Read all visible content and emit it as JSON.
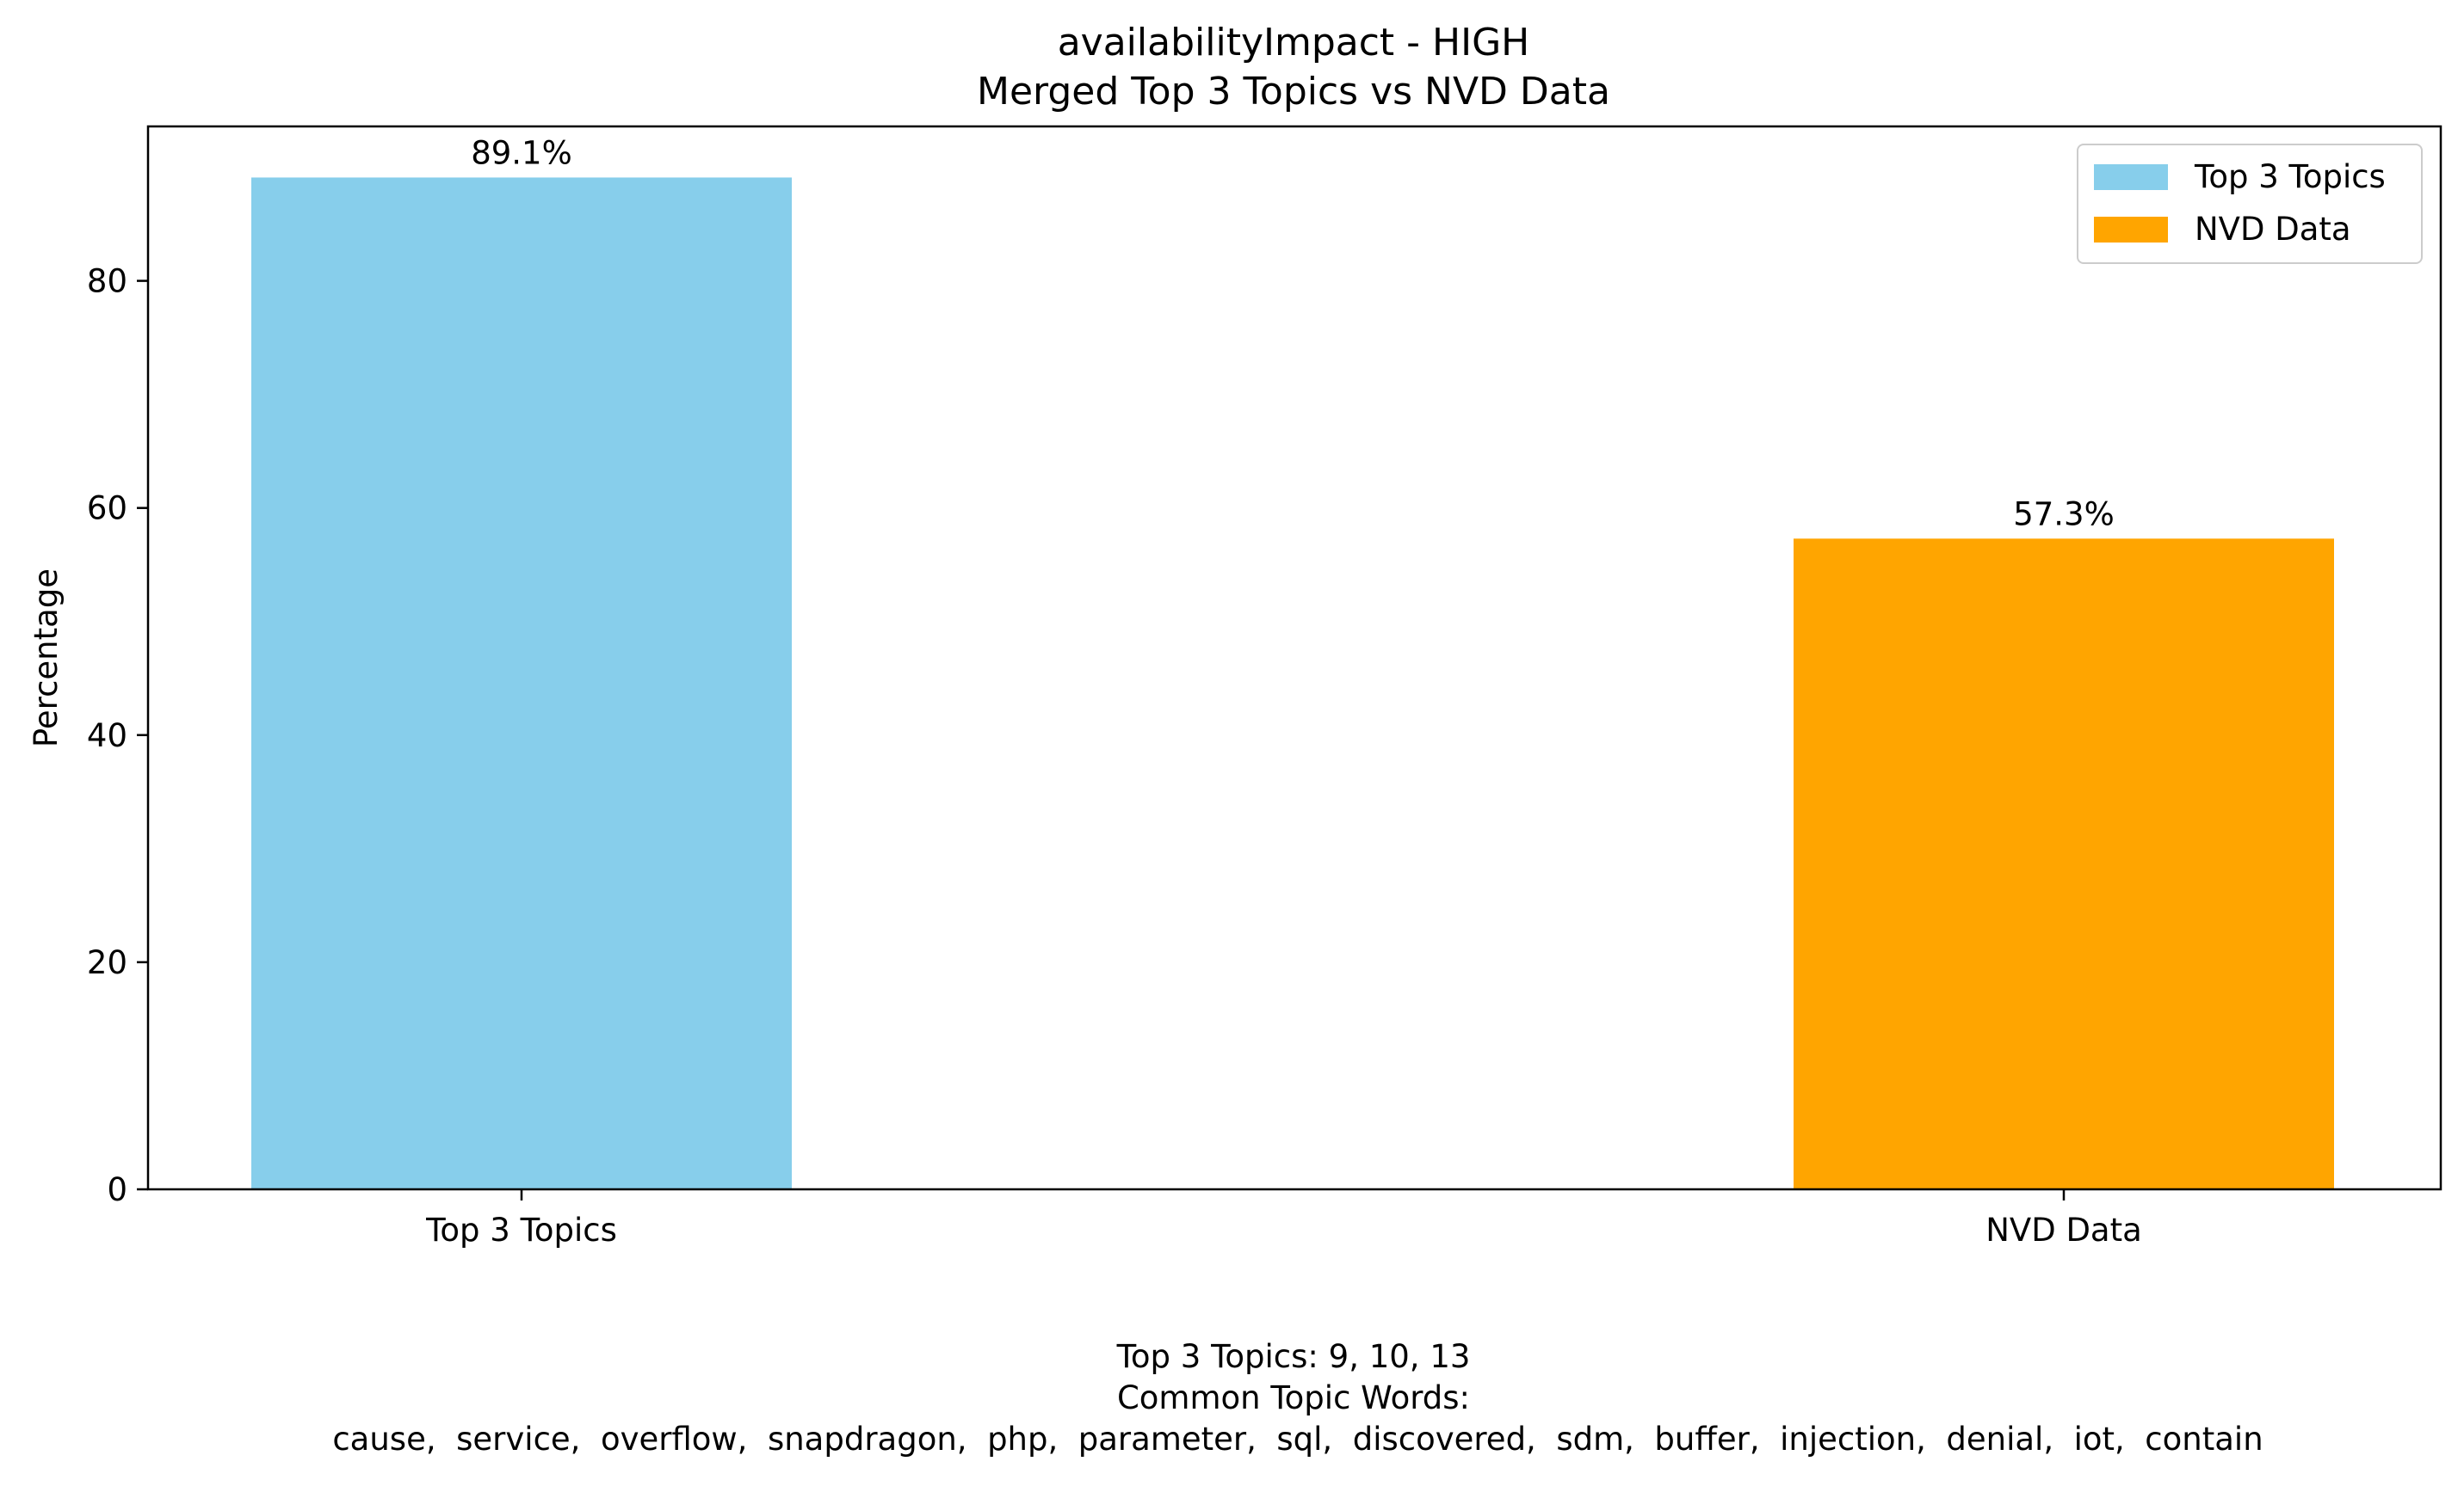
{
  "chart_data": {
    "type": "bar",
    "title": "availabilityImpact - HIGH",
    "subtitle": "Merged Top 3 Topics vs NVD Data",
    "xlabel": "",
    "ylabel": "Percentage",
    "ylim": [
      0,
      93.6
    ],
    "yticks": [
      0,
      20,
      40,
      60,
      80
    ],
    "categories": [
      "Top 3 Topics",
      "NVD Data"
    ],
    "values": [
      89.1,
      57.3
    ],
    "value_labels": [
      "89.1%",
      "57.3%"
    ],
    "colors": [
      "#87CEEB",
      "#FFA500"
    ],
    "legend": {
      "placement": "top-right",
      "entries": [
        {
          "label": "Top 3 Topics",
          "color": "#87CEEB"
        },
        {
          "label": "NVD Data",
          "color": "#FFA500"
        }
      ]
    },
    "grid": false,
    "annotations": {
      "topics_line": "Top 3 Topics: 9, 10, 13",
      "words_heading": "Common Topic Words:",
      "words_line": "cause,  service,  overflow,  snapdragon,  php,  parameter,  sql,  discovered,  sdm,  buffer,  injection,  denial,  iot,  contain"
    }
  }
}
